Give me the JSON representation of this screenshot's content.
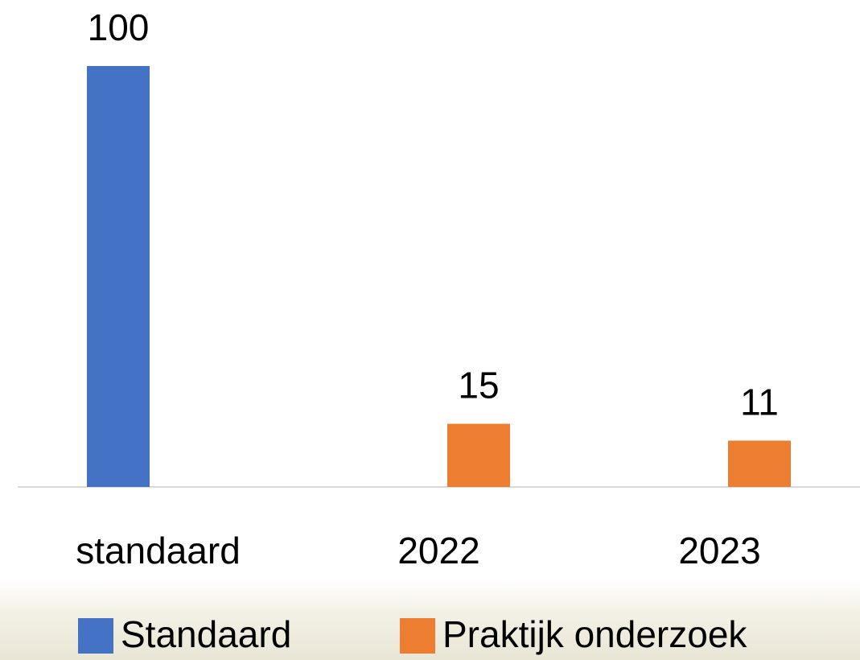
{
  "chart_data": {
    "type": "bar",
    "categories": [
      "standaard",
      "2022",
      "2023"
    ],
    "series": [
      {
        "name": "Standaard",
        "color": "#4472c4",
        "values": [
          100,
          null,
          null
        ]
      },
      {
        "name": "Praktijk onderzoek",
        "color": "#ed7d31",
        "values": [
          null,
          15,
          11
        ]
      }
    ],
    "ylim": [
      0,
      100
    ],
    "legend": "bottom"
  }
}
